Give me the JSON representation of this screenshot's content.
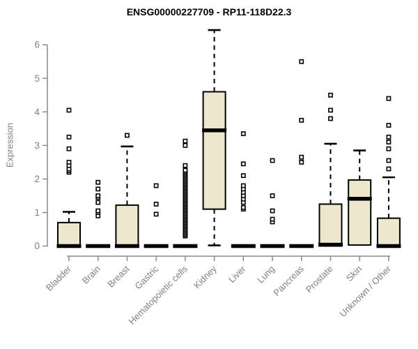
{
  "title": "ENSG00000227709 - RP11-118D22.3",
  "colors": {
    "box_fill": "#EDE7CE",
    "box_stroke": "#000000",
    "median": "#000000",
    "whisker": "#000000",
    "outlier_stroke": "#000000",
    "outlier_fill": "#FFFFFF",
    "axis": "#8A8A8A",
    "tick_text": "#808080",
    "title_text": "#000000",
    "background": "#FFFFFF"
  },
  "chart_data": {
    "type": "boxplot",
    "title": "ENSG00000227709 - RP11-118D22.3",
    "xlabel": "",
    "ylabel": "Expression",
    "ylim": [
      0,
      6.5
    ],
    "yticks": [
      0,
      1,
      2,
      3,
      4,
      5,
      6
    ],
    "grid": false,
    "legend": false,
    "x_tick_rotation": 45,
    "categories": [
      "Bladder",
      "Brain",
      "Breast",
      "Gastric",
      "Hematopoietic cells",
      "Kidney",
      "Liver",
      "Lung",
      "Pancreas",
      "Prostate",
      "Skin",
      "Unknown / Other"
    ],
    "boxes": [
      {
        "category": "Bladder",
        "q1": 0,
        "median": 0,
        "q3": 0.7,
        "whisker_low": null,
        "whisker_high": 1.02,
        "outliers": [
          2.2,
          2.25,
          2.3,
          2.4,
          2.5,
          2.9,
          3.25,
          4.05
        ]
      },
      {
        "category": "Brain",
        "q1": 0,
        "median": 0,
        "q3": 0,
        "whisker_low": null,
        "whisker_high": null,
        "outliers": [
          0.9,
          1.0,
          1.05,
          1.3,
          1.45,
          1.5,
          1.7,
          1.9
        ]
      },
      {
        "category": "Breast",
        "q1": 0,
        "median": 0,
        "q3": 1.22,
        "whisker_low": null,
        "whisker_high": 2.97,
        "outliers": [
          3.3
        ]
      },
      {
        "category": "Gastric",
        "q1": 0,
        "median": 0,
        "q3": 0,
        "whisker_low": null,
        "whisker_high": null,
        "outliers": [
          0.95,
          1.25,
          1.8
        ]
      },
      {
        "category": "Hematopoietic cells",
        "q1": 0,
        "median": 0,
        "q3": 0,
        "whisker_low": null,
        "whisker_high": null,
        "outliers": [
          0.3,
          0.34,
          0.38,
          0.42,
          0.46,
          0.5,
          0.54,
          0.58,
          0.62,
          0.66,
          0.7,
          0.74,
          0.78,
          0.82,
          0.86,
          0.9,
          0.94,
          0.98,
          1.02,
          1.06,
          1.1,
          1.14,
          1.18,
          1.22,
          1.26,
          1.3,
          1.34,
          1.38,
          1.42,
          1.46,
          1.5,
          1.54,
          1.58,
          1.62,
          1.66,
          1.7,
          1.74,
          1.78,
          1.82,
          1.86,
          1.9,
          1.94,
          1.98,
          2.02,
          2.06,
          2.1,
          2.14,
          2.18,
          2.22,
          2.26,
          2.4,
          3.0,
          3.13
        ]
      },
      {
        "category": "Kidney",
        "q1": 1.1,
        "median": 3.45,
        "q3": 4.6,
        "whisker_low": 0.02,
        "whisker_high": 6.44,
        "outliers": []
      },
      {
        "category": "Liver",
        "q1": 0,
        "median": 0,
        "q3": 0,
        "whisker_low": null,
        "whisker_high": null,
        "outliers": [
          1.1,
          1.15,
          1.3,
          1.4,
          1.5,
          1.6,
          1.7,
          1.8,
          2.1,
          2.45,
          3.35
        ]
      },
      {
        "category": "Lung",
        "q1": 0,
        "median": 0,
        "q3": 0,
        "whisker_low": null,
        "whisker_high": null,
        "outliers": [
          0.72,
          0.8,
          1.05,
          1.5,
          2.55
        ]
      },
      {
        "category": "Pancreas",
        "q1": 0,
        "median": 0,
        "q3": 0,
        "whisker_low": null,
        "whisker_high": null,
        "outliers": [
          2.5,
          2.65,
          3.75,
          5.5
        ]
      },
      {
        "category": "Prostate",
        "q1": 0,
        "median": 0.04,
        "q3": 1.25,
        "whisker_low": null,
        "whisker_high": 3.05,
        "outliers": [
          3.8,
          4.05,
          4.5
        ]
      },
      {
        "category": "Skin",
        "q1": 0.03,
        "median": 1.41,
        "q3": 1.97,
        "whisker_low": null,
        "whisker_high": 2.85,
        "outliers": []
      },
      {
        "category": "Unknown / Other",
        "q1": 0,
        "median": 0,
        "q3": 0.83,
        "whisker_low": null,
        "whisker_high": 2.05,
        "outliers": [
          2.3,
          2.55,
          2.9,
          3.1,
          3.25,
          3.6,
          4.4
        ]
      }
    ]
  }
}
